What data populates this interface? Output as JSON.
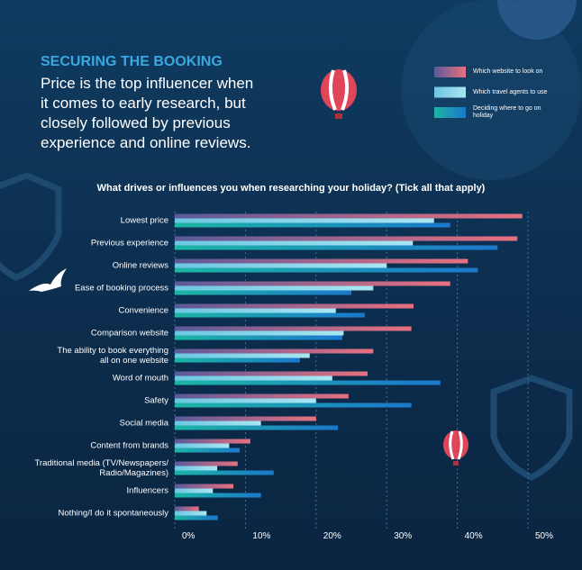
{
  "header": {
    "kicker": "SECURING THE BOOKING",
    "intro": "Price is the top influencer when\nit comes to early research, but\nclosely followed by previous\nexperience and online reviews."
  },
  "chart_data": {
    "type": "hbar",
    "title": "What drives or influences you when researching your holiday? (Tick all that apply)",
    "categories": [
      "Lowest price",
      "Previous experience",
      "Online reviews",
      "Ease of booking process",
      "Convenience",
      "Comparison website",
      "The ability to book everything\nall on one website",
      "Word of mouth",
      "Safety",
      "Social media",
      "Content from brands",
      "Traditional media (TV/Newspapers/\nRadio/Magazines)",
      "Influencers",
      "Nothing/I do it spontaneously"
    ],
    "series": [
      {
        "name": "Which website to look on",
        "color": "#e8707f",
        "values": [
          49.2,
          48.5,
          41.5,
          39.0,
          33.8,
          33.5,
          28.1,
          27.3,
          24.6,
          20.0,
          10.7,
          8.9,
          8.3,
          3.4
        ]
      },
      {
        "name": "Which travel agents to use",
        "color": "#a8e6f2",
        "values": [
          36.7,
          33.7,
          30.0,
          28.1,
          22.8,
          23.9,
          19.1,
          22.3,
          20.0,
          12.2,
          7.7,
          6.0,
          5.4,
          4.5
        ]
      },
      {
        "name": "Deciding where to go on\nholiday",
        "color": "#1b78cc",
        "values": [
          39.0,
          45.7,
          42.9,
          25.0,
          26.9,
          23.7,
          17.7,
          37.6,
          33.5,
          23.1,
          9.2,
          14.0,
          12.2,
          6.1
        ]
      }
    ],
    "xlim": [
      0,
      50
    ],
    "xticks": [
      {
        "value": 0,
        "label": "0%"
      },
      {
        "value": 10,
        "label": "10%"
      },
      {
        "value": 20,
        "label": "20%"
      },
      {
        "value": 30,
        "label": "30%"
      },
      {
        "value": 40,
        "label": "40%"
      },
      {
        "value": 50,
        "label": "50%"
      }
    ],
    "grid": true
  }
}
